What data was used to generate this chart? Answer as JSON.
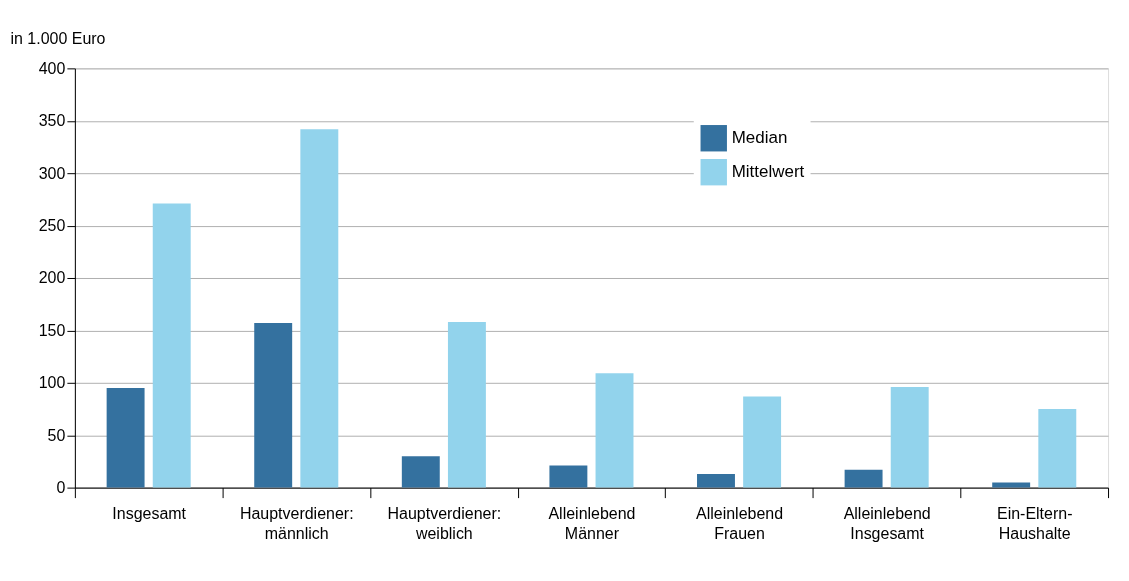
{
  "chart_data": {
    "type": "bar",
    "ylabel": "in 1.000 Euro",
    "categories": [
      "Insgesamt",
      "Hauptverdiener:\nmännlich",
      "Hauptverdiener:\nweiblich",
      "Alleinlebend\nMänner",
      "Alleinlebend\nFrauen",
      "Alleinlebend\nInsgesamt",
      "Ein-Eltern-\nHaushalte"
    ],
    "series": [
      {
        "name": "Median",
        "color": "#34719f",
        "values": [
          95,
          157,
          30,
          21,
          13,
          17,
          5
        ]
      },
      {
        "name": "Mittelwert",
        "color": "#92d3ec",
        "values": [
          271,
          342,
          158,
          109,
          87,
          96,
          75
        ]
      }
    ],
    "ylim": [
      0,
      400
    ],
    "yticks": [
      0,
      50,
      100,
      150,
      200,
      250,
      300,
      350,
      400
    ],
    "grid": "y",
    "legend": "top right"
  }
}
